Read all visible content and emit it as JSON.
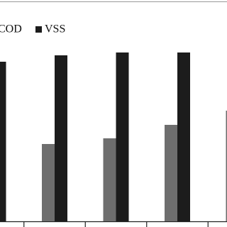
{
  "chart_data": {
    "type": "bar",
    "categories": [
      null,
      null,
      null,
      null,
      null
    ],
    "series": [
      {
        "name": "COD",
        "color": "#6e6e6e",
        "values": [
          null,
          109,
          117,
          136,
          156
        ]
      },
      {
        "name": "VSS",
        "color": "#1c1c1c",
        "values": [
          225,
          234,
          238,
          238,
          null
        ]
      }
    ],
    "ylim": [
      0,
      310
    ]
  }
}
